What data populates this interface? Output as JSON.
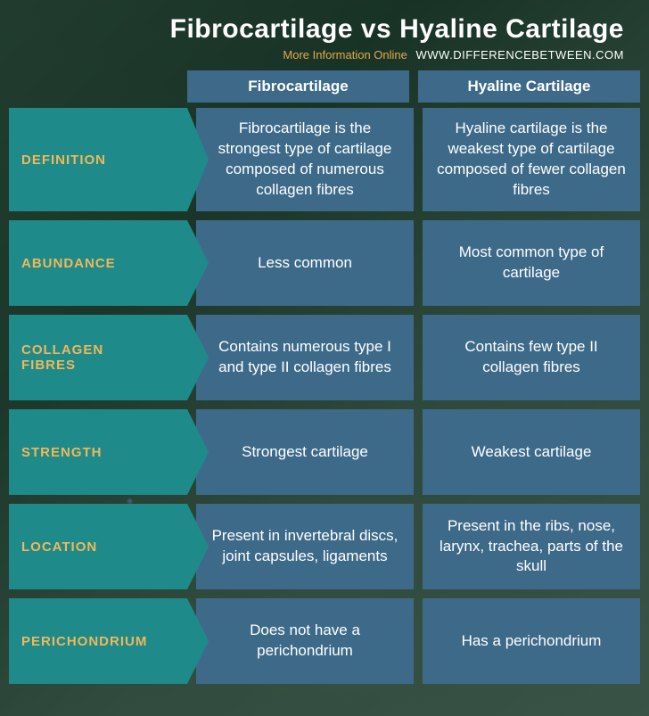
{
  "title": "Fibrocartilage vs Hyaline Cartilage",
  "more_info_label": "More Information Online",
  "site_url": "WWW.DIFFERENCEBETWEEN.COM",
  "colors": {
    "label_bg": "#1e8a8a",
    "label_text": "#f0b85a",
    "cell_bg": "#3e6a8a",
    "cell_text": "#ffffff",
    "title_text": "#ffffff",
    "accent": "#e6a84a"
  },
  "columns": {
    "col1": "Fibrocartilage",
    "col2": "Hyaline Cartilage"
  },
  "rows": [
    {
      "label": "DEFINITION",
      "c1": "Fibrocartilage is the strongest type of cartilage composed of numerous collagen fibres",
      "c2": "Hyaline cartilage is the weakest type of cartilage composed of fewer collagen fibres",
      "tall": true
    },
    {
      "label": "ABUNDANCE",
      "c1": "Less common",
      "c2": "Most common type of cartilage"
    },
    {
      "label": "COLLAGEN FIBRES",
      "c1": "Contains numerous type I and type II collagen fibres",
      "c2": "Contains few type II collagen fibres"
    },
    {
      "label": "STRENGTH",
      "c1": "Strongest cartilage",
      "c2": "Weakest cartilage"
    },
    {
      "label": "LOCATION",
      "c1": "Present in invertebral discs, joint capsules, ligaments",
      "c2": "Present in the ribs, nose, larynx, trachea, parts of the skull"
    },
    {
      "label": "PERICHONDRIUM",
      "c1": "Does not have a perichondrium",
      "c2": "Has a perichondrium"
    }
  ]
}
